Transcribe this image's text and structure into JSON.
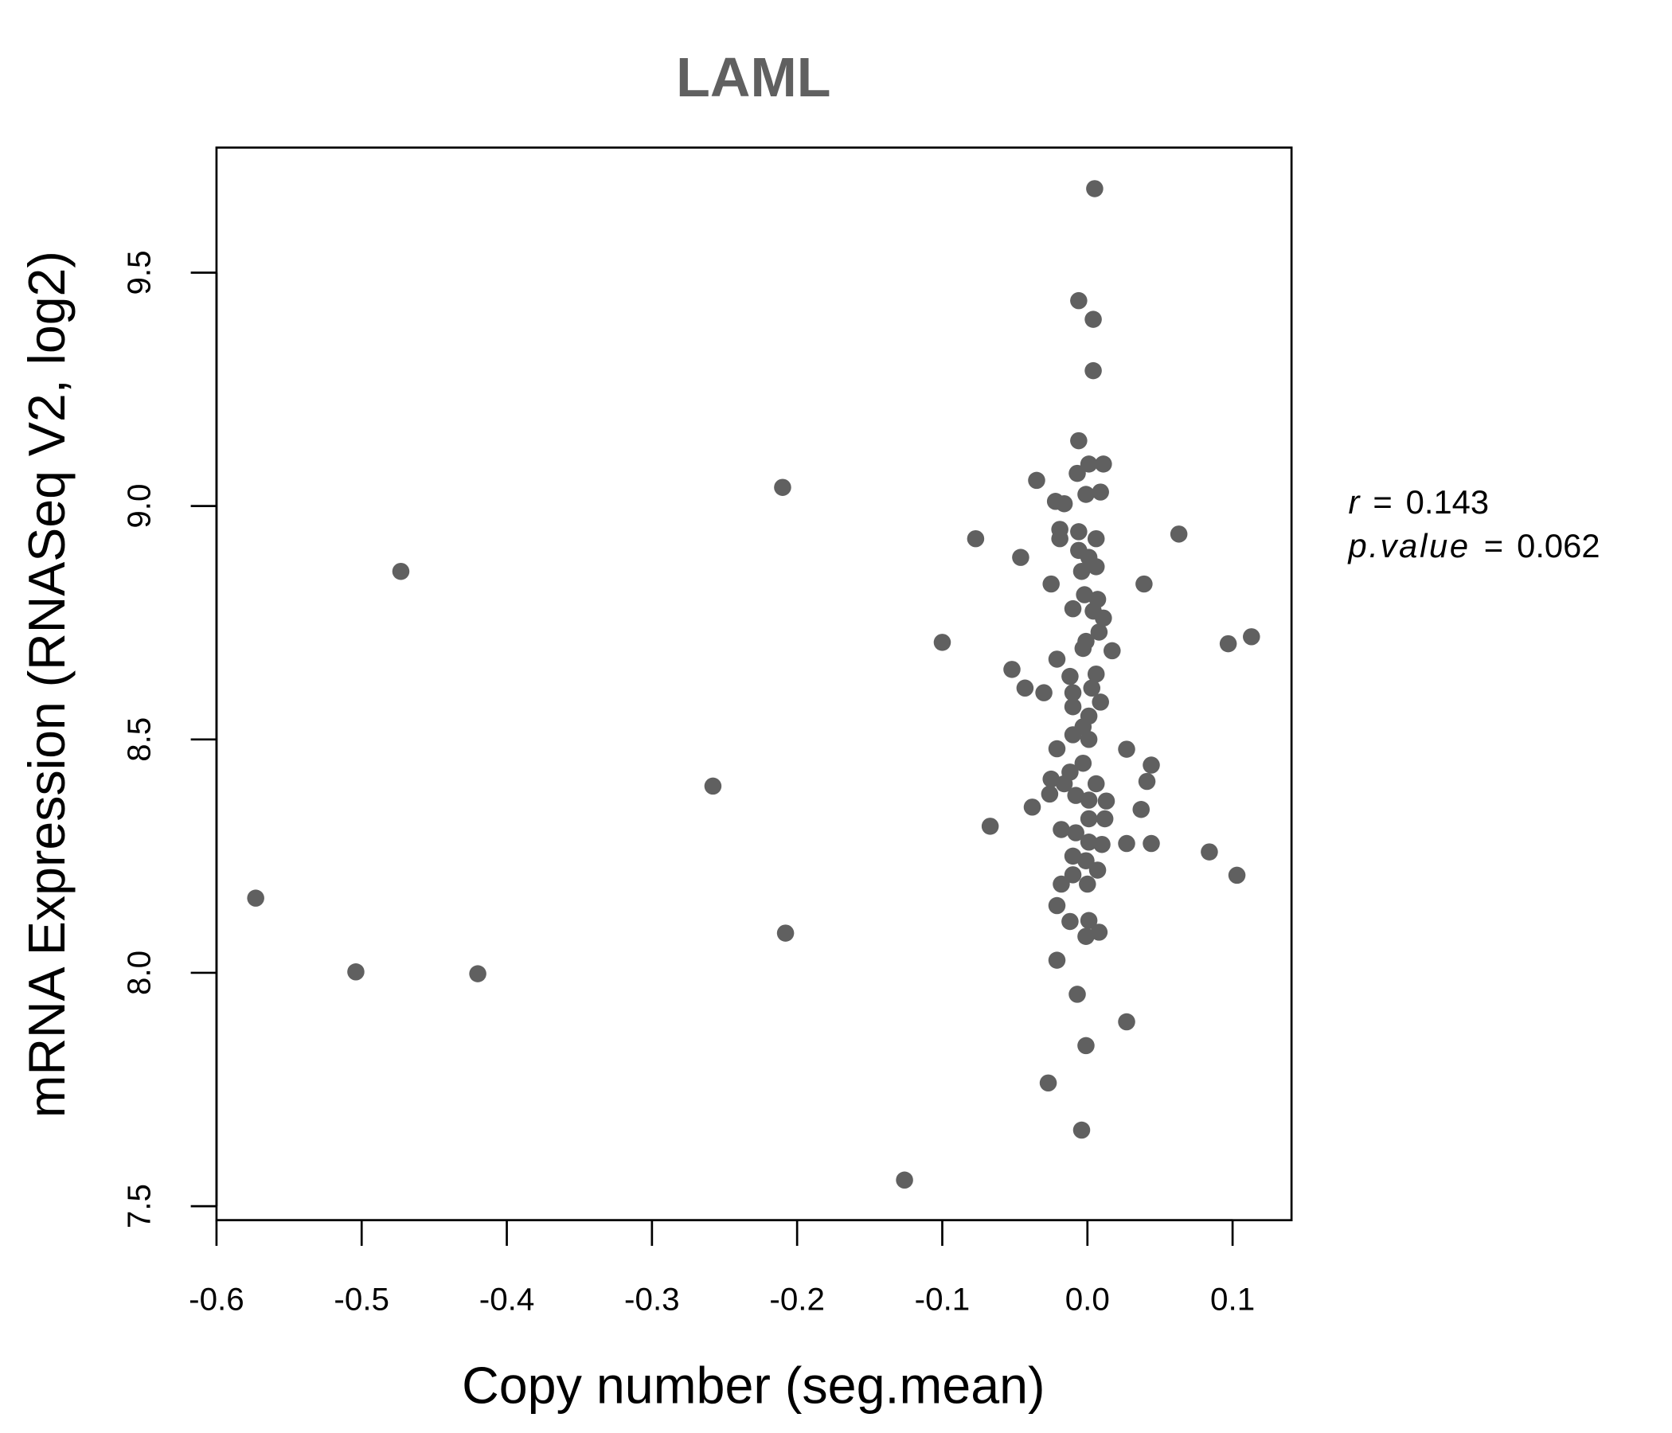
{
  "chart_data": {
    "type": "scatter",
    "title": "LAML",
    "xlabel": "Copy number (seg.mean)",
    "ylabel": "mRNA Expression (RNASeq V2, log2)",
    "xlim": [
      -0.6,
      0.1406
    ],
    "ylim": [
      7.47,
      9.768
    ],
    "xticks": [
      -0.6,
      -0.5,
      -0.4,
      -0.3,
      -0.2,
      -0.1,
      0.0,
      0.1
    ],
    "xtick_labels": [
      "-0.6",
      "-0.5",
      "-0.4",
      "-0.3",
      "-0.2",
      "-0.1",
      "0.0",
      "0.1"
    ],
    "yticks": [
      7.5,
      8.0,
      8.5,
      9.0,
      9.5
    ],
    "ytick_labels": [
      "7.5",
      "8.0",
      "8.5",
      "9.0",
      "9.5"
    ],
    "grid": false,
    "point_color": "#606060",
    "annotation": {
      "r_label": "r",
      "r_value": "0.143",
      "p_label": "p.value",
      "p_value": "0.062",
      "eq": "="
    },
    "points": [
      [
        0.005,
        9.68
      ],
      [
        -0.006,
        9.44
      ],
      [
        0.004,
        9.4
      ],
      [
        0.004,
        9.29
      ],
      [
        -0.006,
        9.14
      ],
      [
        -0.21,
        9.04
      ],
      [
        -0.035,
        9.055
      ],
      [
        -0.007,
        9.07
      ],
      [
        0.001,
        9.09
      ],
      [
        0.011,
        9.09
      ],
      [
        -0.022,
        9.01
      ],
      [
        -0.016,
        9.005
      ],
      [
        -0.001,
        9.025
      ],
      [
        0.009,
        9.03
      ],
      [
        -0.473,
        8.86
      ],
      [
        -0.077,
        8.93
      ],
      [
        -0.046,
        8.89
      ],
      [
        -0.019,
        8.95
      ],
      [
        -0.019,
        8.93
      ],
      [
        -0.006,
        8.945
      ],
      [
        0.006,
        8.93
      ],
      [
        -0.006,
        8.905
      ],
      [
        0.001,
        8.89
      ],
      [
        -0.004,
        8.86
      ],
      [
        0.006,
        8.87
      ],
      [
        0.063,
        8.94
      ],
      [
        -0.025,
        8.833
      ],
      [
        0.039,
        8.833
      ],
      [
        -0.002,
        8.81
      ],
      [
        0.007,
        8.8
      ],
      [
        -0.01,
        8.78
      ],
      [
        0.004,
        8.775
      ],
      [
        0.011,
        8.76
      ],
      [
        0.008,
        8.73
      ],
      [
        -0.001,
        8.71
      ],
      [
        -0.003,
        8.695
      ],
      [
        0.017,
        8.69
      ],
      [
        -0.1,
        8.708
      ],
      [
        0.097,
        8.705
      ],
      [
        0.113,
        8.72
      ],
      [
        -0.021,
        8.672
      ],
      [
        -0.052,
        8.65
      ],
      [
        -0.043,
        8.61
      ],
      [
        -0.03,
        8.6
      ],
      [
        -0.012,
        8.635
      ],
      [
        0.006,
        8.64
      ],
      [
        -0.01,
        8.6
      ],
      [
        0.003,
        8.61
      ],
      [
        0.009,
        8.58
      ],
      [
        -0.01,
        8.57
      ],
      [
        0.001,
        8.55
      ],
      [
        -0.003,
        8.527
      ],
      [
        0.001,
        8.5
      ],
      [
        -0.01,
        8.51
      ],
      [
        -0.021,
        8.48
      ],
      [
        0.027,
        8.479
      ],
      [
        0.044,
        8.445
      ],
      [
        -0.003,
        8.449
      ],
      [
        -0.012,
        8.43
      ],
      [
        -0.258,
        8.4
      ],
      [
        -0.025,
        8.415
      ],
      [
        -0.016,
        8.405
      ],
      [
        0.006,
        8.405
      ],
      [
        0.041,
        8.41
      ],
      [
        -0.026,
        8.383
      ],
      [
        -0.008,
        8.38
      ],
      [
        0.001,
        8.37
      ],
      [
        0.013,
        8.368
      ],
      [
        -0.038,
        8.355
      ],
      [
        0.037,
        8.35
      ],
      [
        0.001,
        8.33
      ],
      [
        0.012,
        8.33
      ],
      [
        -0.067,
        8.314
      ],
      [
        -0.018,
        8.307
      ],
      [
        -0.008,
        8.3
      ],
      [
        0.001,
        8.28
      ],
      [
        0.01,
        8.275
      ],
      [
        0.027,
        8.277
      ],
      [
        0.044,
        8.277
      ],
      [
        0.084,
        8.259
      ],
      [
        -0.01,
        8.25
      ],
      [
        -0.001,
        8.24
      ],
      [
        -0.01,
        8.21
      ],
      [
        0.007,
        8.22
      ],
      [
        0.103,
        8.209
      ],
      [
        0.0,
        8.19
      ],
      [
        -0.018,
        8.19
      ],
      [
        -0.573,
        8.16
      ],
      [
        -0.021,
        8.144
      ],
      [
        -0.012,
        8.11
      ],
      [
        0.001,
        8.112
      ],
      [
        -0.208,
        8.085
      ],
      [
        -0.001,
        8.078
      ],
      [
        0.008,
        8.087
      ],
      [
        -0.021,
        8.027
      ],
      [
        -0.504,
        8.002
      ],
      [
        -0.42,
        7.998
      ],
      [
        -0.007,
        7.954
      ],
      [
        0.027,
        7.895
      ],
      [
        -0.001,
        7.844
      ],
      [
        -0.027,
        7.764
      ],
      [
        -0.004,
        7.663
      ],
      [
        -0.126,
        7.556
      ]
    ]
  }
}
